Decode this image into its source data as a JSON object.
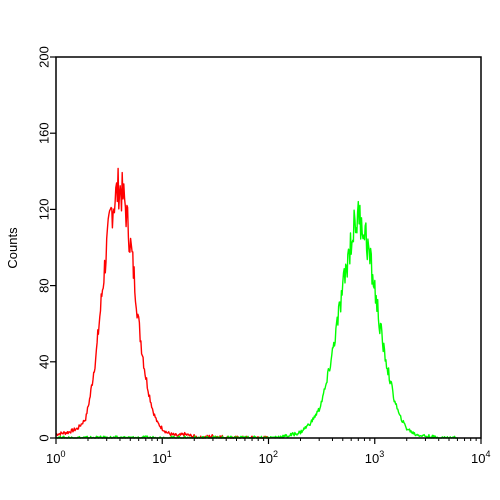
{
  "chart_data": {
    "type": "line",
    "title": "",
    "xlabel": "",
    "ylabel": "Counts",
    "x_scale": "log",
    "xlim": [
      1,
      10000
    ],
    "ylim": [
      0,
      200
    ],
    "grid": false,
    "x_ticks": [
      {
        "base": "10",
        "exp": "0",
        "value": 1
      },
      {
        "base": "10",
        "exp": "1",
        "value": 10
      },
      {
        "base": "10",
        "exp": "2",
        "value": 100
      },
      {
        "base": "10",
        "exp": "3",
        "value": 1000
      },
      {
        "base": "10",
        "exp": "4",
        "value": 10000
      }
    ],
    "y_ticks": [
      "0",
      "40",
      "80",
      "120",
      "160",
      "200"
    ],
    "y_tick_values": [
      0,
      40,
      80,
      120,
      160,
      200
    ],
    "series": [
      {
        "color": "#ff0000",
        "x": [
          1.0,
          1.3,
          1.6,
          1.9,
          2.1,
          2.4,
          2.7,
          3.0,
          3.3,
          3.6,
          3.9,
          4.2,
          4.5,
          4.8,
          5.2,
          5.6,
          6.0,
          6.5,
          7.0,
          7.6,
          8.2,
          9.0,
          10,
          11,
          12,
          14,
          16,
          19,
          23,
          30,
          45,
          70,
          100
        ],
        "y": [
          2,
          3,
          5,
          10,
          22,
          45,
          75,
          100,
          118,
          126,
          132,
          128,
          122,
          110,
          95,
          78,
          60,
          45,
          32,
          22,
          14,
          8,
          5,
          3,
          2,
          1,
          2,
          1,
          0,
          1,
          0,
          0,
          0
        ]
      },
      {
        "color": "#00ff00",
        "x": [
          1,
          10,
          100,
          150,
          200,
          250,
          300,
          350,
          400,
          450,
          500,
          550,
          600,
          650,
          700,
          750,
          800,
          850,
          900,
          1000,
          1100,
          1200,
          1350,
          1500,
          1700,
          2000,
          2400,
          3000,
          4000,
          6000
        ],
        "y": [
          0,
          0,
          0,
          1,
          3,
          8,
          15,
          28,
          45,
          62,
          78,
          92,
          104,
          112,
          116,
          114,
          110,
          102,
          94,
          78,
          62,
          48,
          34,
          22,
          12,
          5,
          2,
          1,
          0,
          0
        ]
      }
    ]
  }
}
